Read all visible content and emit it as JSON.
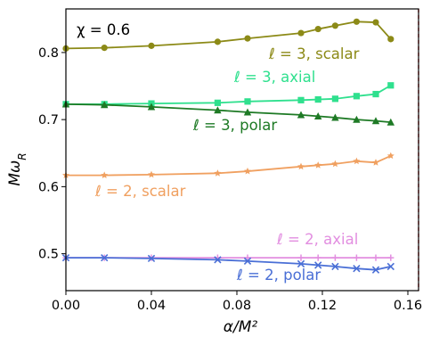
{
  "chart_data": {
    "type": "line",
    "title": "",
    "annotation_top": "χ = 0.6",
    "xlabel": "α/M²",
    "ylabel": "Mω_R",
    "xlim": [
      0.0,
      0.165
    ],
    "ylim": [
      0.445,
      0.865
    ],
    "xticks": [
      "0.00",
      "0.04",
      "0.08",
      "0.12",
      "0.16"
    ],
    "xtick_values": [
      0.0,
      0.04,
      0.08,
      0.12,
      0.16
    ],
    "yticks": [
      "0.5",
      "0.6",
      "0.7",
      "0.8"
    ],
    "ytick_values": [
      0.5,
      0.6,
      0.7,
      0.8
    ],
    "vline": {
      "x": 0.165,
      "color": "#e8282b",
      "style": "dashed"
    },
    "series": [
      {
        "name": "ℓ = 3, scalar",
        "color": "#8c8a17",
        "marker": "circle",
        "x": [
          0.0,
          0.018,
          0.04,
          0.071,
          0.085,
          0.11,
          0.118,
          0.126,
          0.136,
          0.145,
          0.152
        ],
        "values": [
          0.806,
          0.807,
          0.81,
          0.816,
          0.821,
          0.829,
          0.835,
          0.84,
          0.846,
          0.845,
          0.82
        ]
      },
      {
        "name": "ℓ = 3, axial",
        "color": "#2fe08e",
        "marker": "square",
        "x": [
          0.0,
          0.018,
          0.04,
          0.071,
          0.085,
          0.11,
          0.118,
          0.126,
          0.136,
          0.145,
          0.152
        ],
        "values": [
          0.723,
          0.723,
          0.724,
          0.725,
          0.727,
          0.729,
          0.73,
          0.731,
          0.735,
          0.738,
          0.751
        ]
      },
      {
        "name": "ℓ = 3, polar",
        "color": "#1e7a25",
        "marker": "triangle",
        "x": [
          0.0,
          0.018,
          0.04,
          0.071,
          0.085,
          0.11,
          0.118,
          0.126,
          0.136,
          0.145,
          0.152
        ],
        "values": [
          0.723,
          0.722,
          0.719,
          0.714,
          0.711,
          0.707,
          0.705,
          0.703,
          0.7,
          0.698,
          0.696
        ]
      },
      {
        "name": "ℓ = 2, scalar",
        "color": "#f0a060",
        "marker": "star",
        "x": [
          0.0,
          0.018,
          0.04,
          0.071,
          0.085,
          0.11,
          0.118,
          0.126,
          0.136,
          0.145,
          0.152
        ],
        "values": [
          0.617,
          0.617,
          0.618,
          0.62,
          0.623,
          0.63,
          0.632,
          0.634,
          0.638,
          0.636,
          0.646
        ]
      },
      {
        "name": "ℓ = 2, axial",
        "color": "#e28ee0",
        "marker": "plus",
        "x": [
          0.0,
          0.018,
          0.04,
          0.071,
          0.085,
          0.11,
          0.118,
          0.126,
          0.136,
          0.145,
          0.152
        ],
        "values": [
          0.494,
          0.494,
          0.494,
          0.494,
          0.494,
          0.494,
          0.494,
          0.494,
          0.494,
          0.494,
          0.494
        ]
      },
      {
        "name": "ℓ = 2, polar",
        "color": "#4a6fd6",
        "marker": "x",
        "x": [
          0.0,
          0.018,
          0.04,
          0.071,
          0.085,
          0.11,
          0.118,
          0.126,
          0.136,
          0.145,
          0.152
        ],
        "values": [
          0.494,
          0.494,
          0.493,
          0.491,
          0.489,
          0.485,
          0.483,
          0.481,
          0.478,
          0.476,
          0.481
        ]
      }
    ]
  }
}
